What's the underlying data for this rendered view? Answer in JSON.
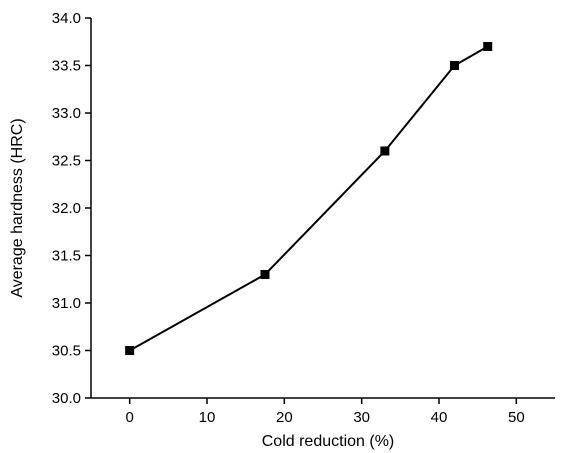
{
  "chart_data": {
    "type": "line",
    "title": "",
    "xlabel": "Cold reduction (%)",
    "ylabel": "Average hardness (HRC)",
    "xlim": [
      -5,
      55
    ],
    "ylim": [
      30.0,
      34.0
    ],
    "xticks": [
      "0",
      "10",
      "20",
      "30",
      "40",
      "50"
    ],
    "yticks": [
      "30.0",
      "30.5",
      "31.0",
      "31.5",
      "32.0",
      "32.5",
      "33.0",
      "33.5",
      "34.0"
    ],
    "grid": false,
    "legend": "none",
    "series": [
      {
        "marker": "square",
        "color": "#000000",
        "points": [
          {
            "x": 0,
            "y": 30.5
          },
          {
            "x": 17.5,
            "y": 31.3
          },
          {
            "x": 33,
            "y": 32.6
          },
          {
            "x": 42,
            "y": 33.5
          },
          {
            "x": 46.3,
            "y": 33.7
          }
        ]
      }
    ]
  }
}
